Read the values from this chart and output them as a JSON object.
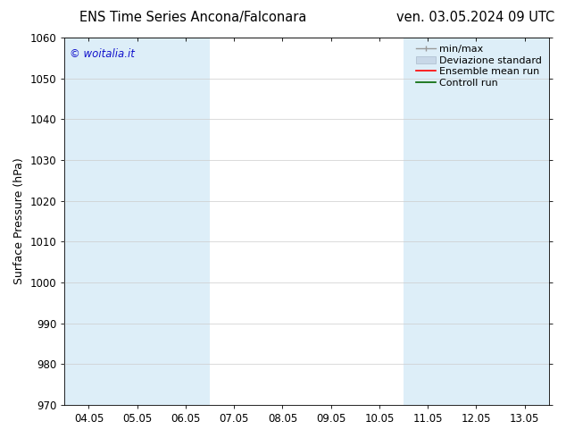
{
  "title_left": "ENS Time Series Ancona/Falconara",
  "title_right": "ven. 03.05.2024 09 UTC",
  "ylabel": "Surface Pressure (hPa)",
  "ylim": [
    970,
    1060
  ],
  "yticks": [
    970,
    980,
    990,
    1000,
    1010,
    1020,
    1030,
    1040,
    1050,
    1060
  ],
  "xtick_labels": [
    "04.05",
    "05.05",
    "06.05",
    "07.05",
    "08.05",
    "09.05",
    "10.05",
    "11.05",
    "12.05",
    "13.05"
  ],
  "xtick_positions": [
    0,
    1,
    2,
    3,
    4,
    5,
    6,
    7,
    8,
    9
  ],
  "xlim": [
    -0.5,
    9.5
  ],
  "shaded_bands": [
    {
      "xmin": -0.5,
      "xmax": 0.5,
      "color": "#ddeef8"
    },
    {
      "xmin": 0.5,
      "xmax": 2.5,
      "color": "#ddeef8"
    },
    {
      "xmin": 6.5,
      "xmax": 8.5,
      "color": "#ddeef8"
    },
    {
      "xmin": 8.5,
      "xmax": 9.5,
      "color": "#ddeef8"
    }
  ],
  "watermark_text": "© woitalia.it",
  "watermark_color": "#1111cc",
  "bg_color": "#ffffff",
  "plot_bg_color": "#ffffff",
  "grid_color": "#cccccc",
  "title_fontsize": 10.5,
  "tick_fontsize": 8.5,
  "ylabel_fontsize": 9,
  "legend_fontsize": 8
}
